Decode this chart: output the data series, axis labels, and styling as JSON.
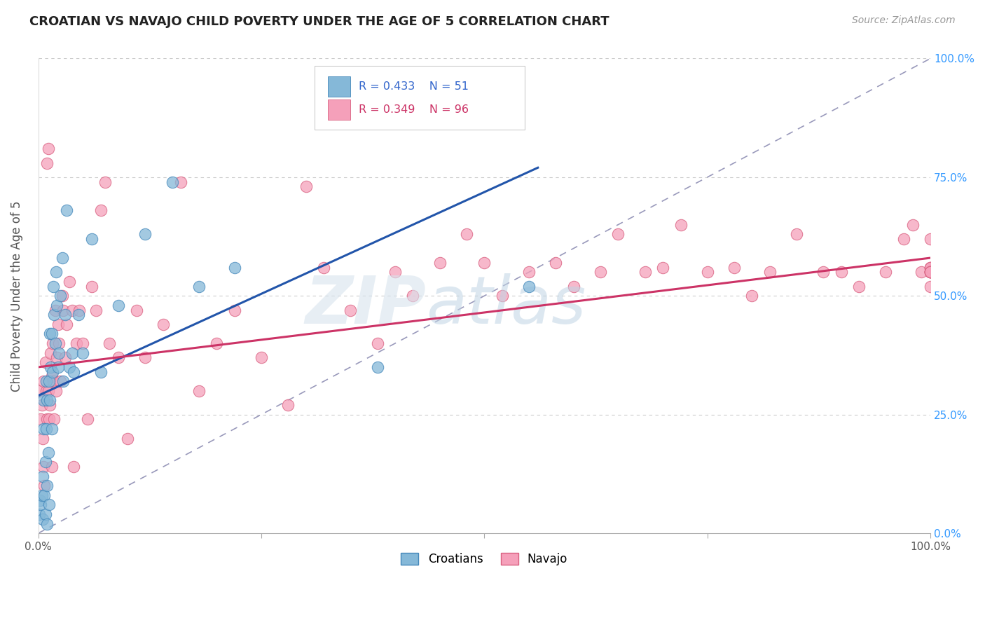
{
  "title": "CROATIAN VS NAVAJO CHILD POVERTY UNDER THE AGE OF 5 CORRELATION CHART",
  "source": "Source: ZipAtlas.com",
  "ylabel": "Child Poverty Under the Age of 5",
  "xlim": [
    0,
    1
  ],
  "ylim": [
    0,
    1
  ],
  "xtick_vals": [
    0.0,
    0.25,
    0.5,
    0.75,
    1.0
  ],
  "xtick_labels_show": [
    "0.0%",
    "",
    "",
    "",
    "100.0%"
  ],
  "ytick_vals": [
    0.0,
    0.25,
    0.5,
    0.75,
    1.0
  ],
  "yticklabels_right": [
    "0.0%",
    "25.0%",
    "50.0%",
    "75.0%",
    "100.0%"
  ],
  "croatian_color": "#85b8d8",
  "navajo_color": "#f5a0ba",
  "croatian_edge": "#4488bb",
  "navajo_edge": "#d96080",
  "blue_line_color": "#2255aa",
  "pink_line_color": "#cc3366",
  "diag_line_color": "#9999bb",
  "croatian_R": 0.433,
  "croatian_N": 51,
  "navajo_R": 0.349,
  "navajo_N": 96,
  "croatian_x": [
    0.001,
    0.002,
    0.003,
    0.004,
    0.005,
    0.005,
    0.006,
    0.006,
    0.007,
    0.008,
    0.008,
    0.009,
    0.009,
    0.01,
    0.01,
    0.01,
    0.011,
    0.012,
    0.012,
    0.013,
    0.013,
    0.014,
    0.015,
    0.015,
    0.016,
    0.017,
    0.018,
    0.019,
    0.02,
    0.021,
    0.022,
    0.023,
    0.025,
    0.027,
    0.028,
    0.03,
    0.032,
    0.035,
    0.038,
    0.04,
    0.045,
    0.05,
    0.06,
    0.07,
    0.09,
    0.12,
    0.15,
    0.18,
    0.22,
    0.38,
    0.55
  ],
  "croatian_y": [
    0.04,
    0.07,
    0.06,
    0.08,
    0.03,
    0.12,
    0.22,
    0.28,
    0.08,
    0.04,
    0.15,
    0.22,
    0.32,
    0.02,
    0.1,
    0.28,
    0.17,
    0.06,
    0.32,
    0.42,
    0.28,
    0.35,
    0.22,
    0.42,
    0.34,
    0.52,
    0.46,
    0.4,
    0.55,
    0.48,
    0.35,
    0.38,
    0.5,
    0.58,
    0.32,
    0.46,
    0.68,
    0.35,
    0.38,
    0.34,
    0.46,
    0.38,
    0.62,
    0.34,
    0.48,
    0.63,
    0.74,
    0.52,
    0.56,
    0.35,
    0.52
  ],
  "navajo_x": [
    0.002,
    0.003,
    0.004,
    0.005,
    0.006,
    0.006,
    0.007,
    0.008,
    0.009,
    0.01,
    0.01,
    0.011,
    0.011,
    0.012,
    0.013,
    0.014,
    0.015,
    0.015,
    0.016,
    0.017,
    0.018,
    0.019,
    0.02,
    0.021,
    0.022,
    0.023,
    0.025,
    0.027,
    0.028,
    0.03,
    0.032,
    0.035,
    0.038,
    0.04,
    0.043,
    0.046,
    0.05,
    0.055,
    0.06,
    0.065,
    0.07,
    0.075,
    0.08,
    0.09,
    0.1,
    0.11,
    0.12,
    0.14,
    0.16,
    0.18,
    0.2,
    0.22,
    0.25,
    0.28,
    0.3,
    0.32,
    0.35,
    0.38,
    0.4,
    0.42,
    0.45,
    0.48,
    0.5,
    0.52,
    0.55,
    0.58,
    0.6,
    0.63,
    0.65,
    0.68,
    0.7,
    0.72,
    0.75,
    0.78,
    0.8,
    0.82,
    0.85,
    0.88,
    0.9,
    0.92,
    0.95,
    0.97,
    0.98,
    0.99,
    1.0,
    1.0,
    1.0,
    1.0,
    1.0,
    1.0,
    1.0,
    1.0,
    1.0,
    1.0,
    1.0,
    1.0
  ],
  "navajo_y": [
    0.3,
    0.24,
    0.27,
    0.2,
    0.32,
    0.14,
    0.1,
    0.36,
    0.3,
    0.24,
    0.78,
    0.81,
    0.3,
    0.24,
    0.27,
    0.38,
    0.14,
    0.33,
    0.4,
    0.32,
    0.24,
    0.47,
    0.3,
    0.37,
    0.44,
    0.4,
    0.32,
    0.5,
    0.47,
    0.37,
    0.44,
    0.53,
    0.47,
    0.14,
    0.4,
    0.47,
    0.4,
    0.24,
    0.52,
    0.47,
    0.68,
    0.74,
    0.4,
    0.37,
    0.2,
    0.47,
    0.37,
    0.44,
    0.74,
    0.3,
    0.4,
    0.47,
    0.37,
    0.27,
    0.73,
    0.56,
    0.47,
    0.4,
    0.55,
    0.5,
    0.57,
    0.63,
    0.57,
    0.5,
    0.55,
    0.57,
    0.52,
    0.55,
    0.63,
    0.55,
    0.56,
    0.65,
    0.55,
    0.56,
    0.5,
    0.55,
    0.63,
    0.55,
    0.55,
    0.52,
    0.55,
    0.62,
    0.65,
    0.55,
    0.56,
    0.55,
    0.55,
    0.52,
    0.56,
    0.55,
    0.62,
    0.55,
    0.56,
    0.55,
    0.55,
    0.55
  ]
}
